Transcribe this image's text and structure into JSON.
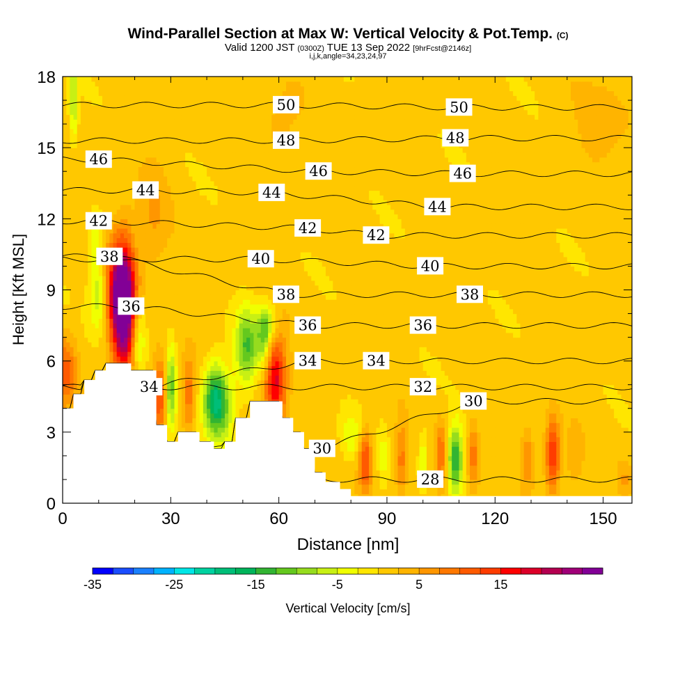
{
  "title_main": "Wind-Parallel Section at Max W: Vertical Velocity & Pot.Temp.",
  "title_mark": "(C)",
  "subtitle_main": "Valid 1200 JST",
  "subtitle_z": "(0300Z)",
  "subtitle_date": "TUE 13 Sep 2022",
  "subtitle_fcst": "[9hrFcst@2146z]",
  "params": "i,j,k,angle=34,23,24,97",
  "chart_data": {
    "type": "heatmap",
    "xlabel": "Distance [nm]",
    "ylabel": "Height [Kft MSL]",
    "xlim": [
      0,
      158
    ],
    "ylim": [
      0,
      18
    ],
    "xticks": [
      "0",
      "30",
      "60",
      "90",
      "120",
      "150"
    ],
    "yticks": [
      "0",
      "3",
      "6",
      "9",
      "12",
      "15",
      "18"
    ],
    "colorbar": {
      "label": "Vertical Velocity [cm/s]",
      "ticks": [
        "-35",
        "-25",
        "-15",
        "-5",
        "5",
        "15"
      ],
      "colors": [
        "#0000ff",
        "#1a4dff",
        "#1a80ff",
        "#00b2ff",
        "#00e6e6",
        "#00d2a0",
        "#00be78",
        "#00b45a",
        "#32b432",
        "#64c81e",
        "#96dc1e",
        "#c8f014",
        "#f0ff00",
        "#ffe600",
        "#ffc800",
        "#ffb400",
        "#ff9600",
        "#ff7800",
        "#ff5a00",
        "#ff3c00",
        "#ff0000",
        "#dc0028",
        "#b40050",
        "#a00078",
        "#820096"
      ]
    },
    "background_w": 1,
    "terrain": [
      [
        0,
        4
      ],
      [
        3,
        4
      ],
      [
        3,
        4.6
      ],
      [
        6,
        4.6
      ],
      [
        6,
        5.2
      ],
      [
        9,
        5.2
      ],
      [
        9,
        5.6
      ],
      [
        12,
        5.6
      ],
      [
        12,
        5.9
      ],
      [
        19,
        5.9
      ],
      [
        19,
        5.6
      ],
      [
        26,
        5.6
      ],
      [
        26,
        3.3
      ],
      [
        29,
        3.3
      ],
      [
        29,
        2.6
      ],
      [
        32,
        2.6
      ],
      [
        32,
        3
      ],
      [
        38,
        3
      ],
      [
        38,
        2.6
      ],
      [
        42,
        2.6
      ],
      [
        42,
        2.3
      ],
      [
        45,
        2.3
      ],
      [
        45,
        2.6
      ],
      [
        48,
        2.6
      ],
      [
        48,
        3.6
      ],
      [
        52,
        3.6
      ],
      [
        52,
        4.3
      ],
      [
        61,
        4.3
      ],
      [
        61,
        3.6
      ],
      [
        64,
        3.6
      ],
      [
        64,
        3
      ],
      [
        67,
        3
      ],
      [
        67,
        2.3
      ],
      [
        70,
        2.3
      ],
      [
        70,
        1.3
      ],
      [
        73,
        1.3
      ],
      [
        73,
        0.9
      ],
      [
        77,
        0.9
      ],
      [
        77,
        0.6
      ],
      [
        80,
        0.6
      ],
      [
        80,
        0.3
      ],
      [
        158,
        0.3
      ]
    ],
    "w_features": [
      {
        "x": 1,
        "y": 5.5,
        "w": 10,
        "rx": 3,
        "ry": 1.5
      },
      {
        "x": 8,
        "y": 3.6,
        "w": 6,
        "rx": 3,
        "ry": 1.0
      },
      {
        "x": 17,
        "y": 8,
        "w": 22,
        "rx": 3,
        "ry": 2.6
      },
      {
        "x": 16,
        "y": 9,
        "w": 18,
        "rx": 4,
        "ry": 2.2
      },
      {
        "x": 10,
        "y": 8.8,
        "w": -9,
        "rx": 2.5,
        "ry": 1.5
      },
      {
        "x": 9,
        "y": 11,
        "w": -5,
        "rx": 2,
        "ry": 1.2
      },
      {
        "x": 21,
        "y": 7,
        "w": -8,
        "rx": 2,
        "ry": 1.5
      },
      {
        "x": 27,
        "y": 4.6,
        "w": 12,
        "rx": 2,
        "ry": 1.6
      },
      {
        "x": 30,
        "y": 4.8,
        "w": -12,
        "rx": 1.5,
        "ry": 1.8
      },
      {
        "x": 35,
        "y": 4.6,
        "w": 9,
        "rx": 1.8,
        "ry": 1.6
      },
      {
        "x": 42,
        "y": 4.4,
        "w": -17,
        "rx": 3,
        "ry": 1.5
      },
      {
        "x": 45,
        "y": 4.1,
        "w": -8,
        "rx": 3,
        "ry": 1.6
      },
      {
        "x": 51,
        "y": 6.6,
        "w": -13,
        "rx": 3,
        "ry": 1.6
      },
      {
        "x": 56,
        "y": 6.9,
        "w": -10,
        "rx": 2,
        "ry": 1.3
      },
      {
        "x": 59,
        "y": 5.3,
        "w": 18,
        "rx": 3,
        "ry": 1.8
      },
      {
        "x": 57,
        "y": 7.6,
        "w": -6,
        "rx": 3,
        "ry": 0.9
      },
      {
        "x": 80,
        "y": 2.8,
        "w": -5,
        "rx": 3,
        "ry": 1.0
      },
      {
        "x": 84,
        "y": 1.8,
        "w": 13,
        "rx": 1.8,
        "ry": 1.3
      },
      {
        "x": 89,
        "y": 2.0,
        "w": -4,
        "rx": 1.2,
        "ry": 1.2
      },
      {
        "x": 94,
        "y": 1.8,
        "w": 8,
        "rx": 1.5,
        "ry": 1.5
      },
      {
        "x": 100,
        "y": 1.9,
        "w": -6,
        "rx": 1.2,
        "ry": 1.2
      },
      {
        "x": 105,
        "y": 2.0,
        "w": 9,
        "rx": 1.5,
        "ry": 1.4
      },
      {
        "x": 109,
        "y": 1.9,
        "w": -16,
        "rx": 2,
        "ry": 1.4
      },
      {
        "x": 114,
        "y": 2.0,
        "w": 8,
        "rx": 1.5,
        "ry": 1.4
      },
      {
        "x": 129,
        "y": 1.9,
        "w": 7,
        "rx": 1.8,
        "ry": 1.2
      },
      {
        "x": 136,
        "y": 2.0,
        "w": 15,
        "rx": 2,
        "ry": 1.5
      },
      {
        "x": 142,
        "y": 1.8,
        "w": 4,
        "rx": 2,
        "ry": 1.2
      },
      {
        "x": 156,
        "y": 1.0,
        "w": 4,
        "rx": 2,
        "ry": 0.8
      },
      {
        "x": 3,
        "y": 17,
        "w": -9,
        "rx": 1.2,
        "ry": 1.7
      },
      {
        "x": 25,
        "y": 12,
        "w": 4,
        "rx": 4,
        "ry": 2.5
      },
      {
        "x": 60,
        "y": 16,
        "w": 3,
        "rx": 6,
        "ry": 1.5
      },
      {
        "x": 150,
        "y": 16,
        "w": 3,
        "rx": 8,
        "ry": 2
      }
    ],
    "theta_contours": [
      {
        "value": 28,
        "label_at": [
          102,
          1.0
        ]
      },
      {
        "value": 30,
        "label_at": [
          72,
          2.3
        ]
      },
      {
        "value": 30,
        "label_at": [
          114,
          4.3
        ]
      },
      {
        "value": 32,
        "label_at": [
          100,
          4.9
        ]
      },
      {
        "value": 34,
        "label_at": [
          24,
          4.9
        ]
      },
      {
        "value": 34,
        "label_at": [
          68,
          6.0
        ]
      },
      {
        "value": 34,
        "label_at": [
          87,
          6.0
        ]
      },
      {
        "value": 36,
        "label_at": [
          19,
          8.3
        ]
      },
      {
        "value": 36,
        "label_at": [
          68,
          7.5
        ]
      },
      {
        "value": 36,
        "label_at": [
          100,
          7.5
        ]
      },
      {
        "value": 38,
        "label_at": [
          13,
          10.4
        ]
      },
      {
        "value": 38,
        "label_at": [
          62,
          8.8
        ]
      },
      {
        "value": 38,
        "label_at": [
          113,
          8.8
        ]
      },
      {
        "value": 40,
        "label_at": [
          55,
          10.3
        ]
      },
      {
        "value": 40,
        "label_at": [
          102,
          10.0
        ]
      },
      {
        "value": 42,
        "label_at": [
          10,
          11.9
        ]
      },
      {
        "value": 42,
        "label_at": [
          68,
          11.6
        ]
      },
      {
        "value": 42,
        "label_at": [
          87,
          11.3
        ]
      },
      {
        "value": 44,
        "label_at": [
          23,
          13.2
        ]
      },
      {
        "value": 44,
        "label_at": [
          58,
          13.1
        ]
      },
      {
        "value": 44,
        "label_at": [
          104,
          12.5
        ]
      },
      {
        "value": 46,
        "label_at": [
          10,
          14.5
        ]
      },
      {
        "value": 46,
        "label_at": [
          71,
          14.0
        ]
      },
      {
        "value": 46,
        "label_at": [
          111,
          13.9
        ]
      },
      {
        "value": 48,
        "label_at": [
          62,
          15.3
        ]
      },
      {
        "value": 48,
        "label_at": [
          109,
          15.4
        ]
      },
      {
        "value": 50,
        "label_at": [
          62,
          16.8
        ]
      },
      {
        "value": 50,
        "label_at": [
          110,
          16.7
        ]
      }
    ]
  }
}
